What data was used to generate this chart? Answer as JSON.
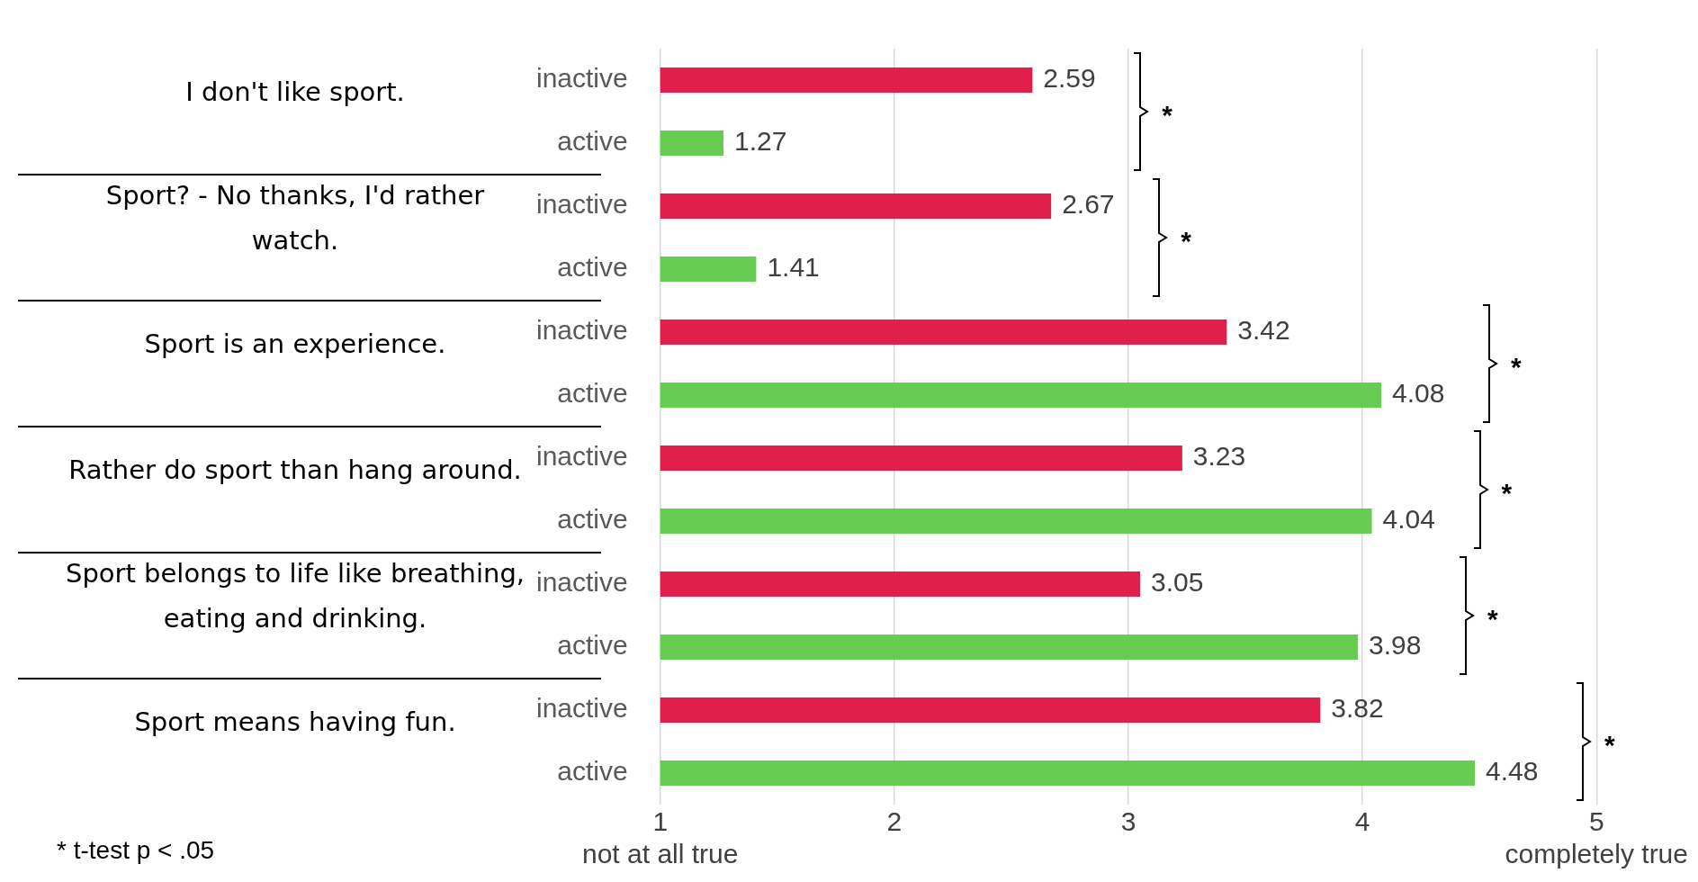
{
  "chart_data": {
    "type": "bar",
    "orientation": "horizontal",
    "categories": [
      "inactive",
      "active",
      "inactive",
      "active",
      "inactive",
      "active",
      "inactive",
      "active",
      "inactive",
      "active",
      "inactive",
      "active"
    ],
    "values": [
      2.59,
      1.27,
      2.67,
      1.41,
      3.42,
      4.08,
      3.23,
      4.04,
      3.05,
      3.98,
      3.82,
      4.48
    ],
    "colors": [
      "#e0204a",
      "#66cc52",
      "#e0204a",
      "#66cc52",
      "#e0204a",
      "#66cc52",
      "#e0204a",
      "#66cc52",
      "#e0204a",
      "#66cc52",
      "#e0204a",
      "#66cc52"
    ],
    "xlim": [
      1,
      5
    ],
    "xticks": [
      {
        "value": 1,
        "label": "1\nnot at all true"
      },
      2,
      3,
      4,
      {
        "value": 5,
        "label": "5\ncompletely true"
      }
    ],
    "grid": "x",
    "data_labels": true,
    "legend": false,
    "annotations": [
      "I don't like sport.",
      "Sport? - No thanks, I'd rather watch.",
      "Sport is an experience.",
      "Rather do sport than hang around.",
      "Sport belongs to life like breathing, eating and drinking.",
      "Sport means having fun.",
      "*",
      "*",
      "*",
      "*",
      "*",
      "*",
      "* t-test p < .05"
    ]
  }
}
